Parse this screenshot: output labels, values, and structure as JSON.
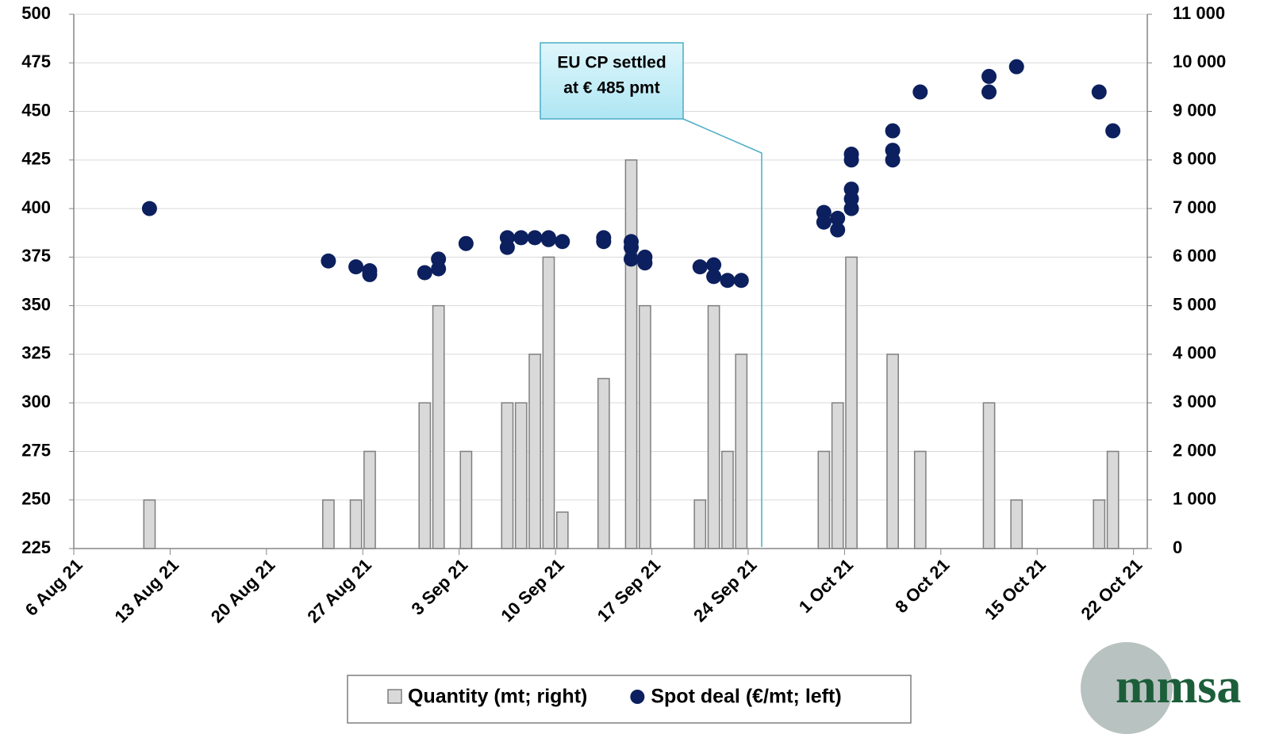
{
  "chart_data": {
    "type": "combo",
    "x_type": "date",
    "xlim": [
      "2021-08-06",
      "2021-10-23"
    ],
    "xticks": [
      {
        "value": "2021-08-06",
        "label": "6 Aug 21"
      },
      {
        "value": "2021-08-13",
        "label": "13 Aug 21"
      },
      {
        "value": "2021-08-20",
        "label": "20 Aug 21"
      },
      {
        "value": "2021-08-27",
        "label": "27 Aug 21"
      },
      {
        "value": "2021-09-03",
        "label": "3 Sep 21"
      },
      {
        "value": "2021-09-10",
        "label": "10 Sep 21"
      },
      {
        "value": "2021-09-17",
        "label": "17 Sep 21"
      },
      {
        "value": "2021-09-24",
        "label": "24 Sep 21"
      },
      {
        "value": "2021-10-01",
        "label": "1 Oct 21"
      },
      {
        "value": "2021-10-08",
        "label": "8 Oct 21"
      },
      {
        "value": "2021-10-15",
        "label": "15 Oct 21"
      },
      {
        "value": "2021-10-22",
        "label": "22 Oct 21"
      }
    ],
    "ylim": [
      225,
      500
    ],
    "yticks": [
      225,
      250,
      275,
      300,
      325,
      350,
      375,
      400,
      425,
      450,
      475,
      500
    ],
    "y2lim": [
      0,
      11000
    ],
    "y2ticks": [
      0,
      {
        "value": 1000,
        "label": "1 000"
      },
      {
        "value": 2000,
        "label": "2 000"
      },
      {
        "value": 3000,
        "label": "3 000"
      },
      {
        "value": 4000,
        "label": "4 000"
      },
      {
        "value": 5000,
        "label": "5 000"
      },
      {
        "value": 6000,
        "label": "6 000"
      },
      {
        "value": 7000,
        "label": "7 000"
      },
      {
        "value": 8000,
        "label": "8 000"
      },
      {
        "value": 9000,
        "label": "9 000"
      },
      {
        "value": 10000,
        "label": "10 000"
      },
      {
        "value": 11000,
        "label": "11 000"
      }
    ],
    "grid": true,
    "legend": "bottom",
    "series": [
      {
        "name": "Quantity (mt; right)",
        "type": "bar",
        "axis": "y2",
        "color": "#d9d9d9",
        "edge_color": "#7f7f7f",
        "x": [
          "2021-08-11",
          "2021-08-24",
          "2021-08-26",
          "2021-08-27",
          "2021-08-31",
          "2021-09-01",
          "2021-09-03",
          "2021-09-06",
          "2021-09-07",
          "2021-09-08",
          "2021-09-09",
          "2021-09-10",
          "2021-09-13",
          "2021-09-15",
          "2021-09-16",
          "2021-09-20",
          "2021-09-21",
          "2021-09-22",
          "2021-09-23",
          "2021-09-29",
          "2021-09-30",
          "2021-10-01",
          "2021-10-04",
          "2021-10-06",
          "2021-10-11",
          "2021-10-13",
          "2021-10-19",
          "2021-10-20"
        ],
        "values": [
          1000,
          1000,
          1000,
          2000,
          3000,
          5000,
          2000,
          3000,
          3000,
          4000,
          6000,
          750,
          3500,
          8000,
          5000,
          1000,
          5000,
          2000,
          4000,
          2000,
          3000,
          6000,
          4000,
          2000,
          3000,
          1000,
          1000,
          2000
        ]
      },
      {
        "name": "Spot deal (€/mt; left)",
        "type": "scatter",
        "axis": "y",
        "color": "#0c1f5e",
        "x": [
          "2021-08-11",
          "2021-08-24",
          "2021-08-26",
          "2021-08-27",
          "2021-08-27",
          "2021-08-31",
          "2021-09-01",
          "2021-09-01",
          "2021-09-03",
          "2021-09-06",
          "2021-09-06",
          "2021-09-07",
          "2021-09-08",
          "2021-09-09",
          "2021-09-09",
          "2021-09-10",
          "2021-09-13",
          "2021-09-13",
          "2021-09-15",
          "2021-09-15",
          "2021-09-15",
          "2021-09-16",
          "2021-09-16",
          "2021-09-20",
          "2021-09-21",
          "2021-09-21",
          "2021-09-22",
          "2021-09-23",
          "2021-09-29",
          "2021-09-29",
          "2021-09-30",
          "2021-09-30",
          "2021-10-01",
          "2021-10-01",
          "2021-10-01",
          "2021-10-01",
          "2021-10-01",
          "2021-10-04",
          "2021-10-04",
          "2021-10-04",
          "2021-10-06",
          "2021-10-11",
          "2021-10-11",
          "2021-10-13",
          "2021-10-19",
          "2021-10-20"
        ],
        "values": [
          400,
          373,
          370,
          368,
          366,
          367,
          374,
          369,
          382,
          385,
          380,
          385,
          385,
          385,
          384,
          383,
          385,
          383,
          383,
          380,
          374,
          375,
          372,
          370,
          371,
          365,
          363,
          363,
          398,
          393,
          395,
          389,
          428,
          425,
          410,
          405,
          400,
          440,
          430,
          425,
          460,
          468,
          460,
          473,
          460,
          440
        ]
      }
    ],
    "annotation": {
      "text": [
        "EU CP settled",
        "at € 485 pmt"
      ]
    },
    "logo": "mmsa"
  }
}
